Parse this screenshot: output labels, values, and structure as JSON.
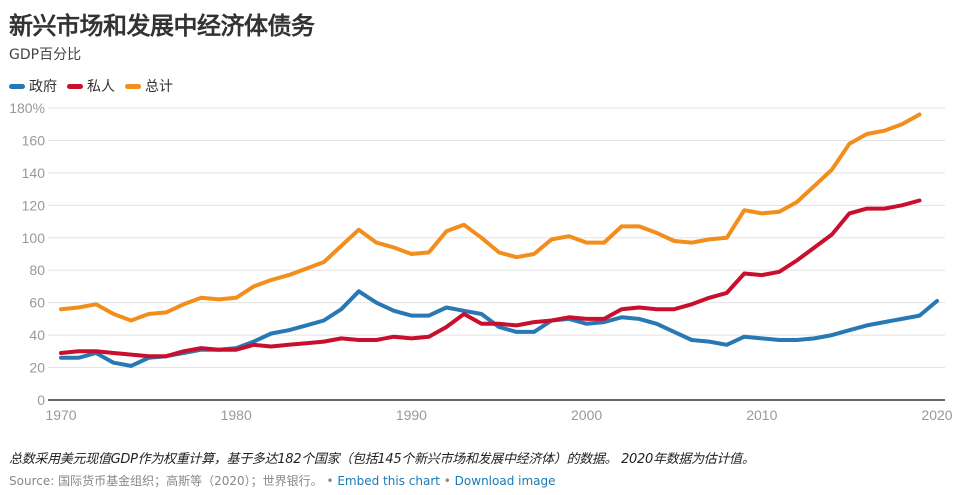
{
  "header": {
    "title": "新兴市场和发展中经济体债务",
    "subtitle": "GDP百分比"
  },
  "footer": {
    "note": "总数采用美元现值GDP作为权重计算，基于多达182个国家（包括145个新兴市场和发展中经济体）的数据。 2020年数据为估计值。",
    "source": "Source: 国际货币基金组织；高斯等（2020）；世界银行。",
    "separator": " • ",
    "embed_link": "Embed this chart",
    "download_link": "Download image"
  },
  "chart_data": {
    "type": "line",
    "title": "新兴市场和发展中经济体债务",
    "subtitle": "GDP百分比",
    "xlabel": "",
    "ylabel": "",
    "xlim": [
      1970,
      2020
    ],
    "ylim": [
      0,
      180
    ],
    "xticks": [
      "1970",
      "1980",
      "1990",
      "2000",
      "2010",
      "2020"
    ],
    "yticks": [
      "0",
      "20",
      "40",
      "60",
      "80",
      "100",
      "120",
      "140",
      "160",
      "180%"
    ],
    "grid": true,
    "legend_position": "top-left",
    "series": [
      {
        "name": "政府",
        "color": "#2878b4",
        "x": [
          1970,
          1971,
          1972,
          1973,
          1974,
          1975,
          1976,
          1977,
          1978,
          1979,
          1980,
          1981,
          1982,
          1983,
          1984,
          1985,
          1986,
          1987,
          1988,
          1989,
          1990,
          1991,
          1992,
          1993,
          1994,
          1995,
          1996,
          1997,
          1998,
          1999,
          2000,
          2001,
          2002,
          2003,
          2004,
          2005,
          2006,
          2007,
          2008,
          2009,
          2010,
          2011,
          2012,
          2013,
          2014,
          2015,
          2016,
          2017,
          2018,
          2019,
          2020
        ],
        "values": [
          26,
          26,
          29,
          23,
          21,
          26,
          27,
          29,
          31,
          31,
          32,
          36,
          41,
          43,
          46,
          49,
          56,
          67,
          60,
          55,
          52,
          52,
          57,
          55,
          53,
          45,
          42,
          42,
          49,
          50,
          47,
          48,
          51,
          50,
          47,
          42,
          37,
          36,
          34,
          39,
          38,
          37,
          37,
          38,
          40,
          43,
          46,
          48,
          50,
          52,
          61
        ]
      },
      {
        "name": "私人",
        "color": "#c8102e",
        "x": [
          1970,
          1971,
          1972,
          1973,
          1974,
          1975,
          1976,
          1977,
          1978,
          1979,
          1980,
          1981,
          1982,
          1983,
          1984,
          1985,
          1986,
          1987,
          1988,
          1989,
          1990,
          1991,
          1992,
          1993,
          1994,
          1995,
          1996,
          1997,
          1998,
          1999,
          2000,
          2001,
          2002,
          2003,
          2004,
          2005,
          2006,
          2007,
          2008,
          2009,
          2010,
          2011,
          2012,
          2013,
          2014,
          2015,
          2016,
          2017,
          2018,
          2019
        ],
        "values": [
          29,
          30,
          30,
          29,
          28,
          27,
          27,
          30,
          32,
          31,
          31,
          34,
          33,
          34,
          35,
          36,
          38,
          37,
          37,
          39,
          38,
          39,
          45,
          53,
          47,
          47,
          46,
          48,
          49,
          51,
          50,
          50,
          56,
          57,
          56,
          56,
          59,
          63,
          66,
          78,
          77,
          79,
          86,
          94,
          102,
          115,
          118,
          118,
          120,
          123
        ]
      },
      {
        "name": "总计",
        "color": "#f28e1c",
        "x": [
          1970,
          1971,
          1972,
          1973,
          1974,
          1975,
          1976,
          1977,
          1978,
          1979,
          1980,
          1981,
          1982,
          1983,
          1984,
          1985,
          1986,
          1987,
          1988,
          1989,
          1990,
          1991,
          1992,
          1993,
          1994,
          1995,
          1996,
          1997,
          1998,
          1999,
          2000,
          2001,
          2002,
          2003,
          2004,
          2005,
          2006,
          2007,
          2008,
          2009,
          2010,
          2011,
          2012,
          2013,
          2014,
          2015,
          2016,
          2017,
          2018,
          2019
        ],
        "values": [
          56,
          57,
          59,
          53,
          49,
          53,
          54,
          59,
          63,
          62,
          63,
          70,
          74,
          77,
          81,
          85,
          95,
          105,
          97,
          94,
          90,
          91,
          104,
          108,
          100,
          91,
          88,
          90,
          99,
          101,
          97,
          97,
          107,
          107,
          103,
          98,
          97,
          99,
          100,
          117,
          115,
          116,
          122,
          132,
          142,
          158,
          164,
          166,
          170,
          176
        ]
      }
    ]
  }
}
